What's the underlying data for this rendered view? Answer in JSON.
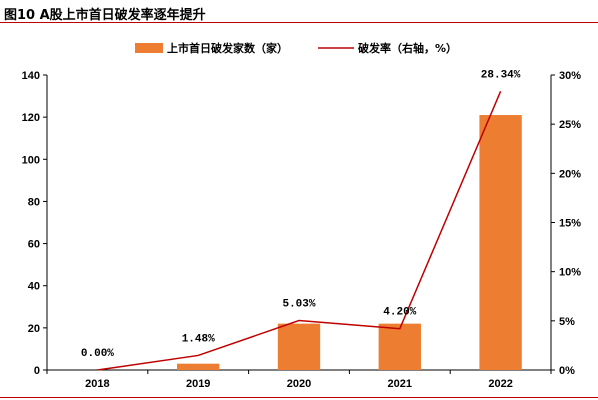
{
  "figure": {
    "title": "图10 A股上市首日破发率逐年提升"
  },
  "colors": {
    "bar": "#ED7D31",
    "line": "#C00000",
    "rule": "#C00000",
    "axis": "#000000"
  },
  "chart_data": {
    "type": "bar",
    "categories": [
      "2018",
      "2019",
      "2020",
      "2021",
      "2022"
    ],
    "series": [
      {
        "name": "上市首日破发家数（家）",
        "type": "bar",
        "axis": "left",
        "values": [
          0,
          3,
          22,
          22,
          121
        ]
      },
      {
        "name": "破发率（右轴，%）",
        "type": "line",
        "axis": "right",
        "values": [
          0.0,
          1.48,
          5.03,
          4.2,
          28.34
        ],
        "data_labels": [
          "0.00%",
          "1.48%",
          "5.03%",
          "4.20%",
          "28.34%"
        ]
      }
    ],
    "y_left": {
      "min": 0,
      "max": 140,
      "ticks": [
        "0",
        "20",
        "40",
        "60",
        "80",
        "100",
        "120",
        "140"
      ]
    },
    "y_right": {
      "min": 0,
      "max": 30,
      "ticks": [
        "0%",
        "5%",
        "10%",
        "15%",
        "20%",
        "25%",
        "30%"
      ]
    },
    "legend": "top",
    "grid": false
  }
}
